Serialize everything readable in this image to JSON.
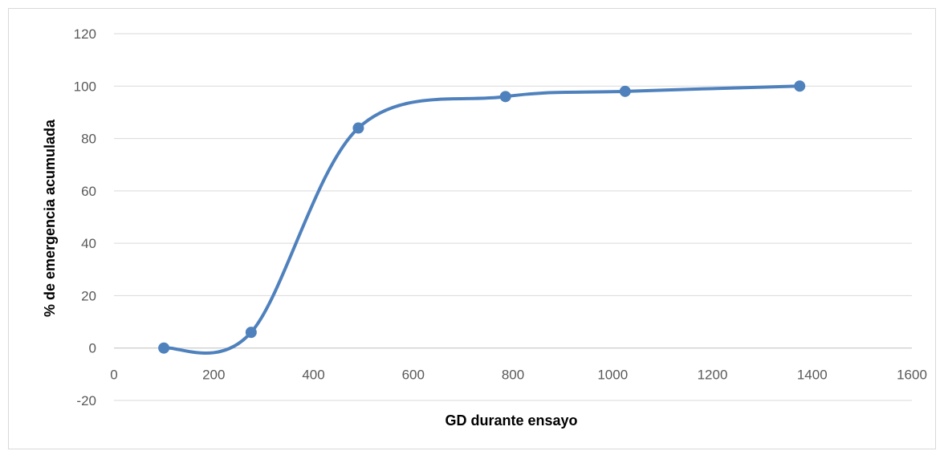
{
  "chart_data": {
    "type": "line",
    "title": "",
    "xlabel": "GD durante ensayo",
    "ylabel": "% de emergencia acumulada",
    "xlim": [
      0,
      1600
    ],
    "ylim": [
      -20,
      120
    ],
    "x_ticks": [
      0,
      200,
      400,
      600,
      800,
      1000,
      1200,
      1400,
      1600
    ],
    "y_ticks": [
      -20,
      0,
      20,
      40,
      60,
      80,
      100,
      120
    ],
    "grid": "horizontal",
    "legend": "none",
    "smooth": true,
    "series": [
      {
        "x": [
          100,
          275,
          490,
          785,
          1025,
          1375
        ],
        "y": [
          0,
          6,
          84,
          96,
          98,
          100
        ],
        "color": "#4f81bd"
      }
    ]
  }
}
